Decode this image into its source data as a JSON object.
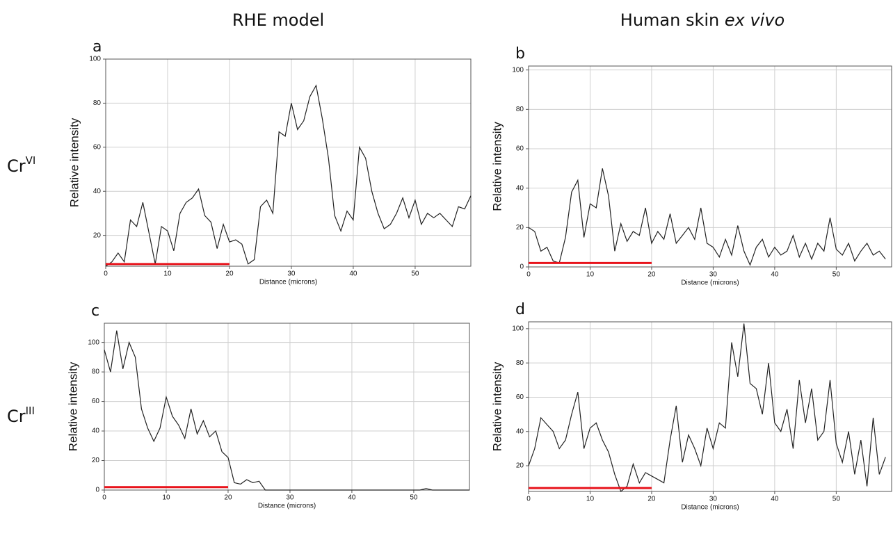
{
  "column_titles": [
    {
      "text": "RHE model"
    },
    {
      "text": "Human skin ",
      "italic": "ex vivo"
    }
  ],
  "row_labels": [
    {
      "base": "Cr",
      "sup": "VI"
    },
    {
      "base": "Cr",
      "sup": "III"
    }
  ],
  "chart_data": [
    {
      "type": "line",
      "label": "a",
      "xlabel": "Distance (microns)",
      "ylabel": "Relative intensity",
      "color": "#222222",
      "grid": true,
      "xlim": [
        0,
        59
      ],
      "ylim": [
        6,
        100
      ],
      "xticks": [
        0,
        10,
        20,
        30,
        40,
        50
      ],
      "yticks": [
        20,
        40,
        60,
        80,
        100
      ],
      "x": [
        0,
        1,
        2,
        3,
        4,
        5,
        6,
        7,
        8,
        9,
        10,
        11,
        12,
        13,
        14,
        15,
        16,
        17,
        18,
        19,
        20,
        21,
        22,
        23,
        24,
        25,
        26,
        27,
        28,
        29,
        30,
        31,
        32,
        33,
        34,
        35,
        36,
        37,
        38,
        39,
        40,
        41,
        42,
        43,
        44,
        45,
        46,
        47,
        48,
        49,
        50,
        51,
        52,
        53,
        54,
        55,
        56,
        57,
        58,
        59
      ],
      "values": [
        6,
        8,
        12,
        8,
        27,
        24,
        35,
        21,
        7,
        24,
        22,
        13,
        30,
        35,
        37,
        41,
        29,
        26,
        14,
        25,
        17,
        18,
        16,
        7,
        9,
        33,
        36,
        30,
        67,
        65,
        80,
        68,
        72,
        83,
        88,
        73,
        55,
        29,
        22,
        31,
        27,
        60,
        55,
        40,
        30,
        23,
        25,
        30,
        37,
        28,
        36,
        25,
        30,
        28,
        30,
        27,
        24,
        33,
        32,
        38
      ],
      "scale_bar": {
        "x": [
          0,
          20
        ],
        "y": 7,
        "color": "#e8141c"
      }
    },
    {
      "type": "line",
      "label": "b",
      "xlabel": "Distance (microns)",
      "ylabel": "Relative intensity",
      "color": "#222222",
      "grid": true,
      "xlim": [
        0,
        59
      ],
      "ylim": [
        0,
        102
      ],
      "xticks": [
        0,
        10,
        20,
        30,
        40,
        50
      ],
      "yticks": [
        0,
        20,
        40,
        60,
        80,
        100
      ],
      "x": [
        0,
        1,
        2,
        3,
        4,
        5,
        6,
        7,
        8,
        9,
        10,
        11,
        12,
        13,
        14,
        15,
        16,
        17,
        18,
        19,
        20,
        21,
        22,
        23,
        24,
        25,
        26,
        27,
        28,
        29,
        30,
        31,
        32,
        33,
        34,
        35,
        36,
        37,
        38,
        39,
        40,
        41,
        42,
        43,
        44,
        45,
        46,
        47,
        48,
        49,
        50,
        51,
        52,
        53,
        54,
        55,
        56,
        57,
        58
      ],
      "values": [
        20,
        18,
        8,
        10,
        3,
        2,
        15,
        38,
        44,
        15,
        32,
        30,
        50,
        36,
        8,
        22,
        13,
        18,
        16,
        30,
        12,
        18,
        14,
        27,
        12,
        16,
        20,
        14,
        30,
        12,
        10,
        5,
        14,
        6,
        21,
        8,
        1,
        10,
        14,
        5,
        10,
        6,
        8,
        16,
        5,
        12,
        4,
        12,
        8,
        25,
        9,
        6,
        12,
        3,
        8,
        12,
        6,
        8,
        4
      ],
      "scale_bar": {
        "x": [
          0,
          20
        ],
        "y": 2,
        "color": "#e8141c"
      }
    },
    {
      "type": "line",
      "label": "c",
      "xlabel": "Distance (microns)",
      "ylabel": "Relative intensity",
      "color": "#222222",
      "grid": true,
      "xlim": [
        0,
        59
      ],
      "ylim": [
        0,
        113
      ],
      "xticks": [
        0,
        10,
        20,
        30,
        40,
        50
      ],
      "yticks": [
        0,
        20,
        40,
        60,
        80,
        100
      ],
      "x": [
        0,
        1,
        2,
        3,
        4,
        5,
        6,
        7,
        8,
        9,
        10,
        11,
        12,
        13,
        14,
        15,
        16,
        17,
        18,
        19,
        20,
        21,
        22,
        23,
        24,
        25,
        26,
        27,
        28,
        29,
        30,
        31,
        32,
        33,
        34,
        35,
        36,
        37,
        38,
        39,
        40,
        41,
        42,
        43,
        44,
        45,
        46,
        47,
        48,
        49,
        50,
        51,
        52,
        53,
        54,
        55,
        56,
        57,
        58,
        59
      ],
      "values": [
        95,
        80,
        108,
        82,
        100,
        90,
        55,
        42,
        33,
        42,
        63,
        50,
        44,
        35,
        55,
        38,
        47,
        36,
        40,
        26,
        22,
        5,
        4,
        7,
        5,
        6,
        0,
        0,
        0,
        0,
        0,
        0,
        0,
        0,
        0,
        0,
        0,
        0,
        0,
        0,
        0,
        0,
        0,
        0,
        0,
        0,
        0,
        0,
        0,
        0,
        0,
        0,
        1,
        0,
        0,
        0,
        0,
        0,
        0,
        0
      ],
      "scale_bar": {
        "x": [
          0,
          20
        ],
        "y": 2,
        "color": "#e8141c"
      }
    },
    {
      "type": "line",
      "label": "d",
      "xlabel": "Distance (microns)",
      "ylabel": "Relative intensity",
      "color": "#222222",
      "grid": true,
      "xlim": [
        0,
        59
      ],
      "ylim": [
        5,
        104
      ],
      "xticks": [
        0,
        10,
        20,
        30,
        40,
        50
      ],
      "yticks": [
        20,
        40,
        60,
        80,
        100
      ],
      "x": [
        0,
        1,
        2,
        3,
        4,
        5,
        6,
        7,
        8,
        9,
        10,
        11,
        12,
        13,
        14,
        15,
        16,
        17,
        18,
        19,
        20,
        21,
        22,
        23,
        24,
        25,
        26,
        27,
        28,
        29,
        30,
        31,
        32,
        33,
        34,
        35,
        36,
        37,
        38,
        39,
        40,
        41,
        42,
        43,
        44,
        45,
        46,
        47,
        48,
        49,
        50,
        51,
        52,
        53,
        54,
        55,
        56,
        57,
        58
      ],
      "values": [
        20,
        30,
        48,
        44,
        40,
        30,
        35,
        50,
        63,
        30,
        42,
        45,
        35,
        28,
        15,
        5,
        8,
        21,
        10,
        16,
        14,
        12,
        10,
        35,
        55,
        22,
        38,
        30,
        20,
        42,
        30,
        45,
        42,
        92,
        72,
        103,
        68,
        65,
        50,
        80,
        45,
        40,
        53,
        30,
        70,
        45,
        65,
        35,
        40,
        70,
        33,
        22,
        40,
        15,
        35,
        8,
        48,
        15,
        25
      ],
      "scale_bar": {
        "x": [
          0,
          20
        ],
        "y": 7,
        "color": "#e8141c"
      }
    }
  ]
}
